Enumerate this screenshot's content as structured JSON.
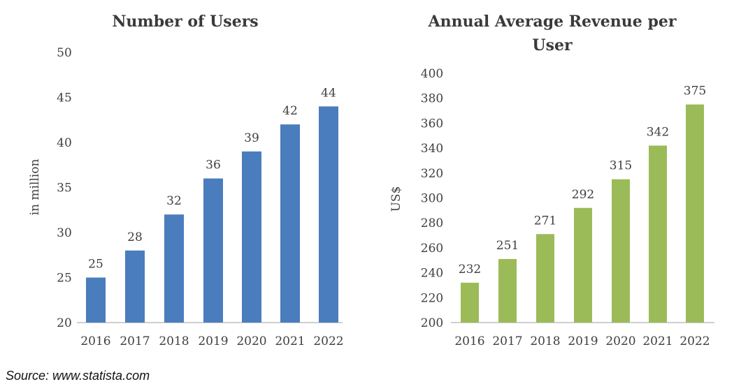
{
  "chart_data": [
    {
      "type": "bar",
      "title": "Number of Users",
      "xlabel": "",
      "ylabel": "in million",
      "categories": [
        "2016",
        "2017",
        "2018",
        "2019",
        "2020",
        "2021",
        "2022"
      ],
      "values": [
        25,
        28,
        32,
        36,
        39,
        42,
        44
      ],
      "ylim": [
        20,
        50
      ],
      "yticks": [
        20,
        25,
        30,
        35,
        40,
        45,
        50
      ],
      "color": "#4a7dbd",
      "grid": false
    },
    {
      "type": "bar",
      "title": "Annual Average Revenue per User",
      "title_lines": [
        "Annual Average Revenue per",
        "User"
      ],
      "xlabel": "",
      "ylabel": "US$",
      "categories": [
        "2016",
        "2017",
        "2018",
        "2019",
        "2020",
        "2021",
        "2022"
      ],
      "values": [
        232,
        251,
        271,
        292,
        315,
        342,
        375
      ],
      "ylim": [
        200,
        400
      ],
      "yticks": [
        200,
        220,
        240,
        260,
        280,
        300,
        320,
        340,
        360,
        380,
        400
      ],
      "color": "#9bbb59",
      "grid": false
    }
  ],
  "source": "Source: www.statista.com"
}
